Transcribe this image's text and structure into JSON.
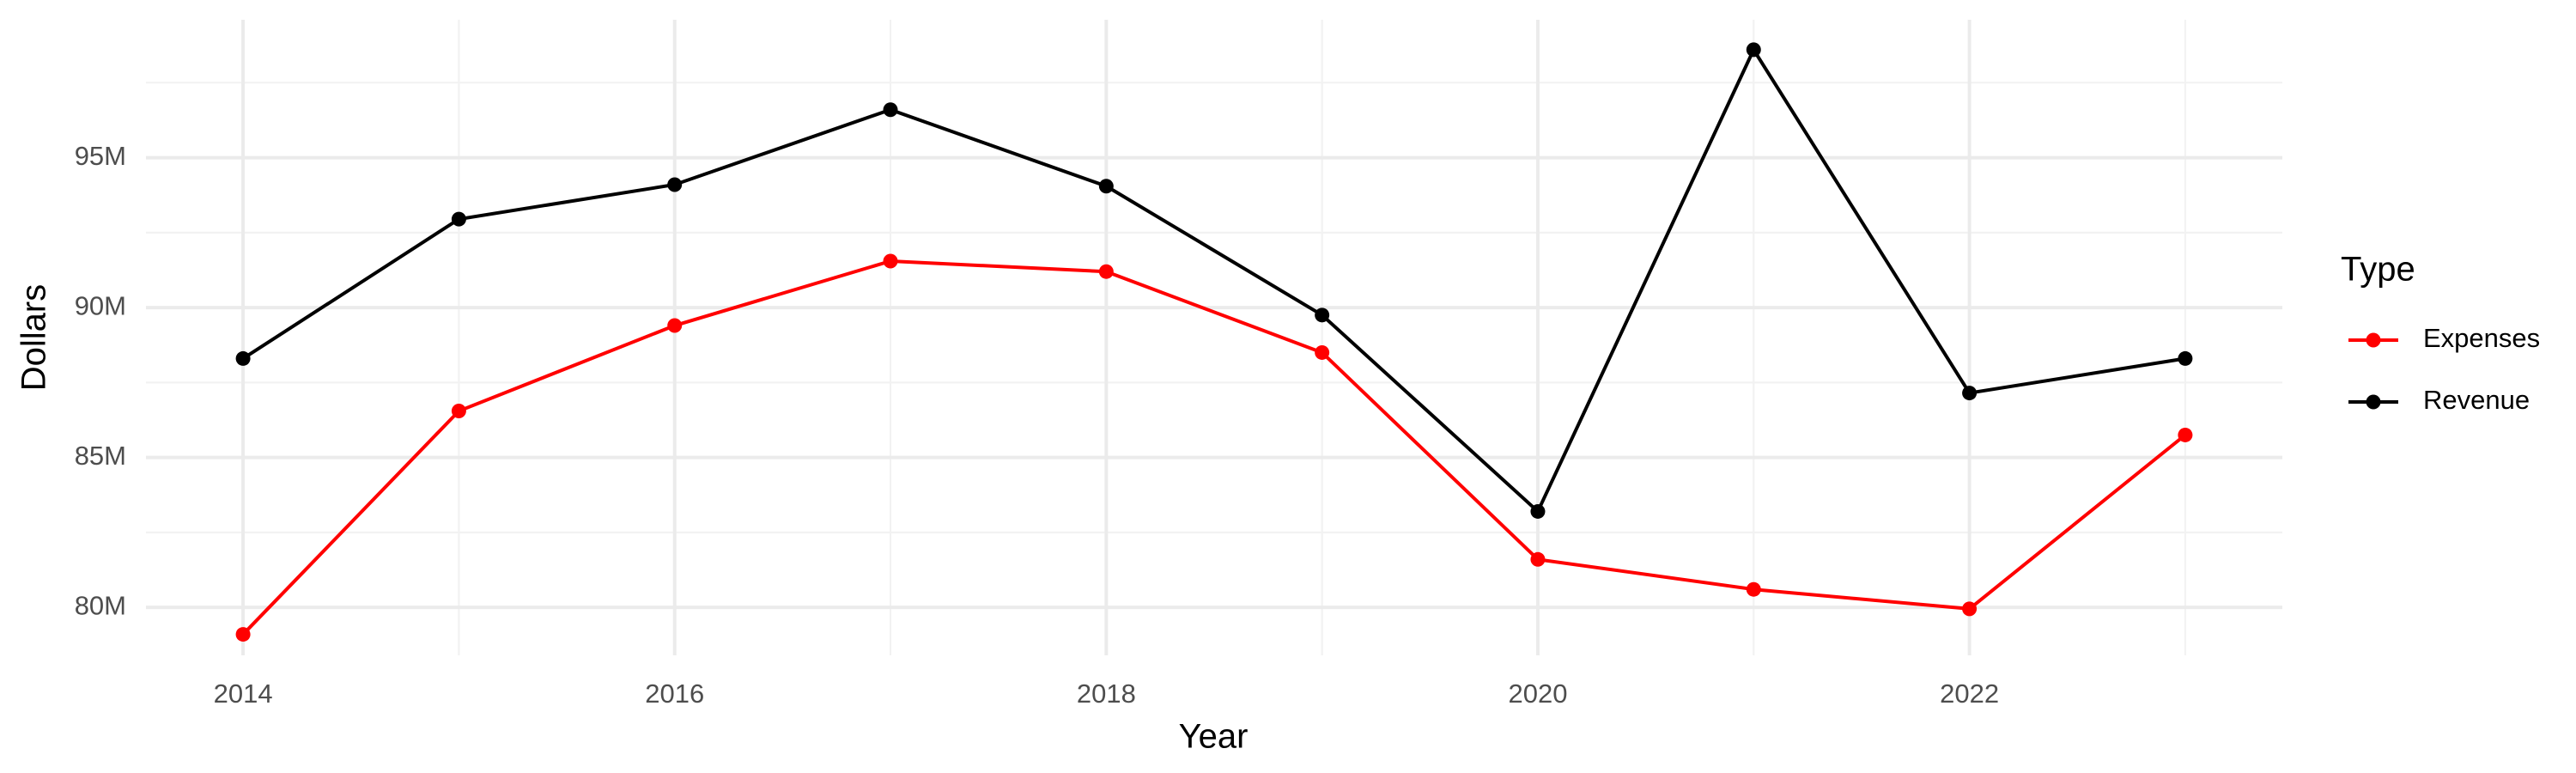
{
  "chart_data": {
    "type": "line",
    "x_label": "Year",
    "y_label": "Dollars",
    "legend_title": "Type",
    "x": [
      2014,
      2015,
      2016,
      2017,
      2018,
      2019,
      2020,
      2021,
      2022,
      2023
    ],
    "series": [
      {
        "name": "Expenses",
        "color": "#ff0000",
        "values": [
          79100000,
          86550000,
          89400000,
          91550000,
          91200000,
          88500000,
          81600000,
          80600000,
          79950000,
          85750000
        ]
      },
      {
        "name": "Revenue",
        "color": "#000000",
        "values": [
          88300000,
          92950000,
          94100000,
          96600000,
          94050000,
          89750000,
          83200000,
          98600000,
          87150000,
          88300000
        ]
      }
    ],
    "xlim": [
      2013.55,
      2023.45
    ],
    "xticks": [
      2014,
      2016,
      2018,
      2020,
      2022
    ],
    "ylim": [
      78400000,
      99600000
    ],
    "yticks": [
      {
        "value": 80000000,
        "label": "80M"
      },
      {
        "value": 85000000,
        "label": "85M"
      },
      {
        "value": 90000000,
        "label": "90M"
      },
      {
        "value": 95000000,
        "label": "95M"
      }
    ],
    "grid": true,
    "legend": "right"
  }
}
